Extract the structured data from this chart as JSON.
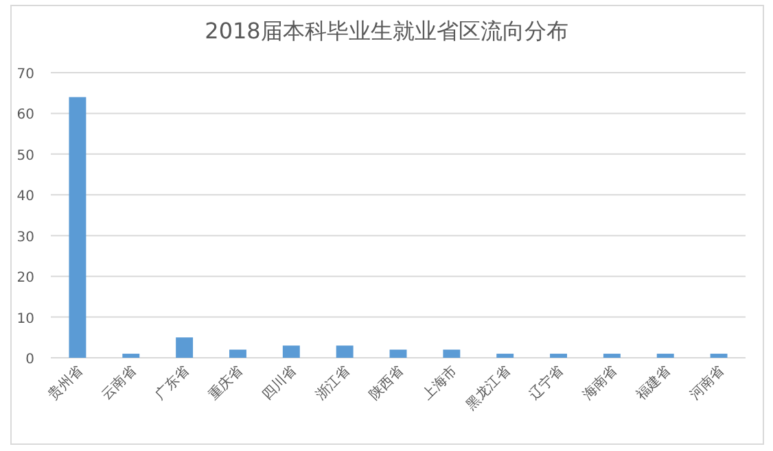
{
  "chart_data": {
    "type": "bar",
    "title": "2018届本科毕业生就业省区流向分布",
    "categories": [
      "贵州省",
      "云南省",
      "广东省",
      "重庆省",
      "四川省",
      "浙江省",
      "陕西省",
      "上海市",
      "黑龙江省",
      "辽宁省",
      "海南省",
      "福建省",
      "河南省"
    ],
    "values": [
      64,
      1,
      5,
      2,
      3,
      3,
      2,
      2,
      1,
      1,
      1,
      1,
      1
    ],
    "color": "#5b9bd5",
    "ylim": [
      0,
      70
    ],
    "yticks": [
      0,
      10,
      20,
      30,
      40,
      50,
      60,
      70
    ],
    "grid": "y"
  }
}
